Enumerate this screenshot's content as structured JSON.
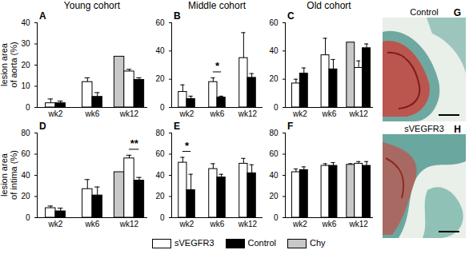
{
  "chart_data": [
    {
      "type": "bar",
      "panel": "A",
      "title": "Young cohort",
      "y_label": "lesion area\nof aorta (%)",
      "categories": [
        "wk2",
        "wk6",
        "wk12"
      ],
      "ylim": [
        0,
        40
      ],
      "yticks": [
        0,
        10,
        20,
        30,
        40
      ],
      "series": [
        {
          "name": "sVEGFR3",
          "color": "#ffffff",
          "values": [
            2,
            12,
            17
          ],
          "errors": [
            2,
            2,
            1
          ]
        },
        {
          "name": "Control",
          "color": "#000000",
          "values": [
            2,
            5,
            13
          ],
          "errors": [
            1,
            2,
            1
          ]
        },
        {
          "name": "Chy",
          "color": "#c8c8c8",
          "values": [
            null,
            null,
            24
          ],
          "errors": [
            null,
            null,
            null
          ]
        }
      ],
      "annotations": []
    },
    {
      "type": "bar",
      "panel": "B",
      "title": "Middle cohort",
      "categories": [
        "wk2",
        "wk6",
        "wk12"
      ],
      "ylim": [
        0,
        60
      ],
      "yticks": [
        0,
        20,
        40,
        60
      ],
      "series": [
        {
          "name": "sVEGFR3",
          "color": "#ffffff",
          "values": [
            11,
            18,
            35
          ],
          "errors": [
            5,
            3,
            18
          ]
        },
        {
          "name": "Control",
          "color": "#000000",
          "values": [
            6,
            7,
            21
          ],
          "errors": [
            2,
            1,
            3
          ]
        }
      ],
      "annotations": [
        {
          "category": "wk6",
          "text": "*"
        }
      ]
    },
    {
      "type": "bar",
      "panel": "C",
      "title": "Old cohort",
      "categories": [
        "wk2",
        "wk6",
        "wk12"
      ],
      "ylim": [
        0,
        60
      ],
      "yticks": [
        0,
        20,
        40,
        60
      ],
      "series": [
        {
          "name": "sVEGFR3",
          "color": "#ffffff",
          "values": [
            17,
            37,
            28
          ],
          "errors": [
            3,
            12,
            5
          ]
        },
        {
          "name": "Control",
          "color": "#000000",
          "values": [
            24,
            27,
            42
          ],
          "errors": [
            4,
            7,
            3
          ]
        },
        {
          "name": "Chy",
          "color": "#c8c8c8",
          "values": [
            null,
            null,
            46
          ],
          "errors": [
            null,
            null,
            null
          ]
        }
      ],
      "annotations": []
    },
    {
      "type": "bar",
      "panel": "D",
      "y_label": "lesion area\nof intima (%)",
      "categories": [
        "wk2",
        "wk6",
        "wk12"
      ],
      "ylim": [
        0,
        80
      ],
      "yticks": [
        0,
        20,
        40,
        60,
        80
      ],
      "series": [
        {
          "name": "sVEGFR3",
          "color": "#ffffff",
          "values": [
            9,
            27,
            56
          ],
          "errors": [
            2,
            9,
            3
          ]
        },
        {
          "name": "Control",
          "color": "#000000",
          "values": [
            6,
            21,
            35
          ],
          "errors": [
            3,
            8,
            3
          ]
        },
        {
          "name": "Chy",
          "color": "#c8c8c8",
          "values": [
            null,
            null,
            43
          ],
          "errors": [
            null,
            null,
            null
          ]
        }
      ],
      "annotations": [
        {
          "category": "wk12",
          "text": "**"
        }
      ]
    },
    {
      "type": "bar",
      "panel": "E",
      "categories": [
        "wk2",
        "wk6",
        "wk12"
      ],
      "ylim": [
        0,
        80
      ],
      "yticks": [
        0,
        20,
        40,
        60,
        80
      ],
      "series": [
        {
          "name": "sVEGFR3",
          "color": "#ffffff",
          "values": [
            52,
            46,
            51
          ],
          "errors": [
            5,
            5,
            5
          ]
        },
        {
          "name": "Control",
          "color": "#000000",
          "values": [
            26,
            38,
            42
          ],
          "errors": [
            15,
            3,
            8
          ]
        }
      ],
      "annotations": [
        {
          "category": "wk2",
          "text": "*"
        }
      ]
    },
    {
      "type": "bar",
      "panel": "F",
      "categories": [
        "wk2",
        "wk6",
        "wk12"
      ],
      "ylim": [
        0,
        80
      ],
      "yticks": [
        0,
        20,
        40,
        60,
        80
      ],
      "series": [
        {
          "name": "sVEGFR3",
          "color": "#ffffff",
          "values": [
            43,
            49,
            51
          ],
          "errors": [
            3,
            2,
            2
          ]
        },
        {
          "name": "Control",
          "color": "#000000",
          "values": [
            45,
            49,
            49
          ],
          "errors": [
            3,
            3,
            4
          ]
        },
        {
          "name": "Chy",
          "color": "#c8c8c8",
          "values": [
            null,
            null,
            50
          ],
          "errors": [
            null,
            null,
            1
          ]
        }
      ],
      "annotations": []
    }
  ],
  "images": [
    {
      "panel": "G",
      "title": "Control"
    },
    {
      "panel": "H",
      "title": "sVEGFR3"
    }
  ]
}
